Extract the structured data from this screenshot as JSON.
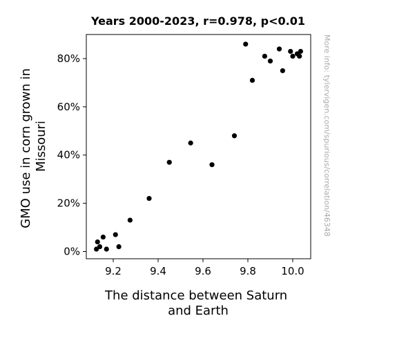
{
  "chart_data": {
    "type": "scatter",
    "title": "Years 2000-2023, r=0.978, p<0.01",
    "xlabel_lines": [
      "The distance between Saturn",
      "and Earth"
    ],
    "ylabel_lines": [
      "GMO use in corn grown in",
      "Missouri"
    ],
    "xlim": [
      9.08,
      10.08
    ],
    "ylim": [
      -3,
      90
    ],
    "xticks": [
      9.2,
      9.4,
      9.6,
      9.8,
      10.0
    ],
    "xtick_labels": [
      "9.2",
      "9.4",
      "9.6",
      "9.8",
      "10.0"
    ],
    "yticks": [
      0,
      20,
      40,
      60,
      80
    ],
    "ytick_labels": [
      "0%",
      "20%",
      "40%",
      "60%",
      "80%"
    ],
    "grid": false,
    "marker_color": "#000000",
    "points": [
      {
        "x": 9.125,
        "y": 1
      },
      {
        "x": 9.13,
        "y": 4
      },
      {
        "x": 9.14,
        "y": 2
      },
      {
        "x": 9.155,
        "y": 6
      },
      {
        "x": 9.17,
        "y": 1
      },
      {
        "x": 9.21,
        "y": 7
      },
      {
        "x": 9.225,
        "y": 2
      },
      {
        "x": 9.275,
        "y": 13
      },
      {
        "x": 9.36,
        "y": 22
      },
      {
        "x": 9.45,
        "y": 37
      },
      {
        "x": 9.545,
        "y": 45
      },
      {
        "x": 9.64,
        "y": 36
      },
      {
        "x": 9.74,
        "y": 48
      },
      {
        "x": 9.79,
        "y": 86
      },
      {
        "x": 9.82,
        "y": 71
      },
      {
        "x": 9.875,
        "y": 81
      },
      {
        "x": 9.9,
        "y": 79
      },
      {
        "x": 9.94,
        "y": 84
      },
      {
        "x": 9.955,
        "y": 75
      },
      {
        "x": 9.99,
        "y": 83
      },
      {
        "x": 10.0,
        "y": 81
      },
      {
        "x": 10.02,
        "y": 82
      },
      {
        "x": 10.03,
        "y": 81
      },
      {
        "x": 10.035,
        "y": 83
      }
    ]
  },
  "side_note": "More info: tylervigen.com/spurious/correlation/46348"
}
